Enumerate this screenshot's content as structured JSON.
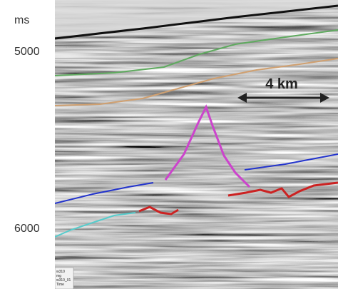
{
  "axis": {
    "unit": "ms",
    "labels": [
      "5000",
      "6000"
    ]
  },
  "scale_bar": "4 km",
  "corner_label": [
    "w310",
    "mg",
    "w310_01",
    "Time"
  ]
}
